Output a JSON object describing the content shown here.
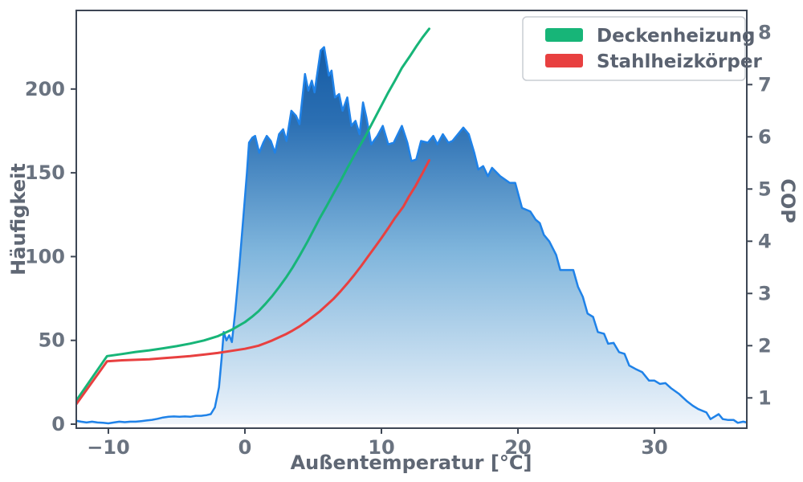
{
  "figure": {
    "xlabel": "Außentemperatur [°C]",
    "ylabel_left": "Häufigkeit",
    "ylabel_right": "COP"
  },
  "colors": {
    "spine": "#3d4654",
    "tick_text": "#6a7380",
    "hist_line": "#1f82e8",
    "grad_top": "#0b529d",
    "grad_mid1": "#2b6fb3",
    "grad_mid2": "#7fb5dc",
    "grad_bottom": "#eef4fb",
    "legend_border": "#c9cdd3"
  },
  "chart_data": {
    "type": "area",
    "title": "",
    "xlabel": "Außentemperatur [°C]",
    "ylabel_left": "Häufigkeit",
    "ylabel_right": "COP",
    "xlim": [
      -12.35,
      36.76
    ],
    "ylim_left": [
      -2.4,
      246.9
    ],
    "ylim_right": [
      0.42,
      8.42
    ],
    "x_ticks": [
      -10,
      0,
      10,
      20,
      30
    ],
    "y_left_ticks": [
      0,
      50,
      100,
      150,
      200
    ],
    "y_right_ticks": [
      1,
      2,
      3,
      4,
      5,
      6,
      7,
      8
    ],
    "grid": false,
    "legend_position": "upper right",
    "histogram": {
      "name": "Häufigkeit",
      "axis": "left",
      "points": [
        [
          -12.35,
          2
        ],
        [
          -12,
          1.5
        ],
        [
          -11.6,
          1
        ],
        [
          -11.2,
          1.5
        ],
        [
          -10.8,
          1
        ],
        [
          -10.4,
          0.8
        ],
        [
          -10,
          0.5
        ],
        [
          -9.6,
          1
        ],
        [
          -9.2,
          1.5
        ],
        [
          -8.8,
          1.2
        ],
        [
          -8.4,
          1.5
        ],
        [
          -8,
          1.5
        ],
        [
          -7.6,
          1.8
        ],
        [
          -7.2,
          2.2
        ],
        [
          -6.8,
          2.6
        ],
        [
          -6.4,
          3.2
        ],
        [
          -6,
          4
        ],
        [
          -5.6,
          4.4
        ],
        [
          -5.2,
          4.6
        ],
        [
          -4.8,
          4.4
        ],
        [
          -4.4,
          4.6
        ],
        [
          -4,
          4.4
        ],
        [
          -3.6,
          5
        ],
        [
          -3.2,
          5
        ],
        [
          -2.8,
          5.4
        ],
        [
          -2.5,
          6
        ],
        [
          -2.2,
          10
        ],
        [
          -1.9,
          22
        ],
        [
          -1.7,
          40
        ],
        [
          -1.55,
          55
        ],
        [
          -1.35,
          50
        ],
        [
          -1.15,
          53
        ],
        [
          -0.95,
          49
        ],
        [
          -0.7,
          68
        ],
        [
          -0.4,
          95
        ],
        [
          -0.1,
          125
        ],
        [
          0.15,
          150
        ],
        [
          0.3,
          168
        ],
        [
          0.55,
          171
        ],
        [
          0.75,
          172
        ],
        [
          1.05,
          162
        ],
        [
          1.35,
          168
        ],
        [
          1.6,
          172
        ],
        [
          1.9,
          169
        ],
        [
          2.2,
          162
        ],
        [
          2.5,
          173
        ],
        [
          2.8,
          176
        ],
        [
          3.05,
          169
        ],
        [
          3.4,
          187
        ],
        [
          3.75,
          184
        ],
        [
          4,
          179
        ],
        [
          4.4,
          209
        ],
        [
          4.65,
          199
        ],
        [
          4.9,
          205
        ],
        [
          5.1,
          198
        ],
        [
          5.55,
          223
        ],
        [
          5.8,
          225
        ],
        [
          6.15,
          208
        ],
        [
          6.35,
          211
        ],
        [
          6.6,
          195
        ],
        [
          6.9,
          197
        ],
        [
          7.15,
          187
        ],
        [
          7.5,
          195
        ],
        [
          7.8,
          178
        ],
        [
          8.1,
          181
        ],
        [
          8.4,
          173
        ],
        [
          8.65,
          192
        ],
        [
          8.9,
          183
        ],
        [
          9.25,
          167
        ],
        [
          9.7,
          172
        ],
        [
          10.1,
          178
        ],
        [
          10.5,
          167
        ],
        [
          10.9,
          168
        ],
        [
          11.5,
          178
        ],
        [
          11.9,
          168
        ],
        [
          12.2,
          157
        ],
        [
          12.55,
          158
        ],
        [
          12.9,
          169
        ],
        [
          13.4,
          168
        ],
        [
          13.8,
          172
        ],
        [
          14.1,
          167
        ],
        [
          14.5,
          173
        ],
        [
          14.9,
          168
        ],
        [
          15.2,
          169
        ],
        [
          16,
          177
        ],
        [
          16.4,
          173
        ],
        [
          16.8,
          162
        ],
        [
          17.1,
          152
        ],
        [
          17.45,
          154
        ],
        [
          17.8,
          148
        ],
        [
          18.1,
          153
        ],
        [
          18.7,
          148
        ],
        [
          19.4,
          144
        ],
        [
          19.8,
          144
        ],
        [
          20.3,
          129
        ],
        [
          20.9,
          127
        ],
        [
          21.3,
          122
        ],
        [
          21.6,
          120
        ],
        [
          21.9,
          113
        ],
        [
          22.3,
          109
        ],
        [
          22.8,
          101
        ],
        [
          23.1,
          92
        ],
        [
          23.7,
          92
        ],
        [
          24.05,
          92
        ],
        [
          24.4,
          82
        ],
        [
          24.75,
          76
        ],
        [
          25.1,
          66
        ],
        [
          25.5,
          64
        ],
        [
          25.85,
          55
        ],
        [
          26.3,
          54
        ],
        [
          26.6,
          48
        ],
        [
          27,
          48.5
        ],
        [
          27.4,
          43
        ],
        [
          27.8,
          42
        ],
        [
          28.15,
          35
        ],
        [
          28.6,
          33
        ],
        [
          29.1,
          31
        ],
        [
          29.6,
          26
        ],
        [
          30,
          26
        ],
        [
          30.4,
          24
        ],
        [
          30.8,
          24.5
        ],
        [
          31.2,
          21.5
        ],
        [
          31.8,
          18
        ],
        [
          32.4,
          13.5
        ],
        [
          32.8,
          11
        ],
        [
          33.2,
          9
        ],
        [
          33.8,
          7
        ],
        [
          34.1,
          3
        ],
        [
          34.5,
          5
        ],
        [
          34.7,
          6
        ],
        [
          35,
          3
        ],
        [
          35.4,
          2.5
        ],
        [
          35.8,
          2.5
        ],
        [
          36.1,
          0.8
        ],
        [
          36.5,
          1.5
        ],
        [
          36.76,
          1
        ]
      ]
    },
    "series": [
      {
        "name": "Deckenheizung",
        "axis": "right",
        "color": "#17b578",
        "points": [
          [
            -12.35,
            0.95
          ],
          [
            -10.1,
            1.8
          ],
          [
            -9,
            1.84
          ],
          [
            -8,
            1.88
          ],
          [
            -7,
            1.91
          ],
          [
            -6,
            1.95
          ],
          [
            -5,
            1.99
          ],
          [
            -4,
            2.04
          ],
          [
            -3,
            2.1
          ],
          [
            -2,
            2.18
          ],
          [
            -1,
            2.3
          ],
          [
            0,
            2.45
          ],
          [
            0.5,
            2.55
          ],
          [
            1,
            2.66
          ],
          [
            1.5,
            2.8
          ],
          [
            2,
            2.95
          ],
          [
            2.5,
            3.12
          ],
          [
            3,
            3.3
          ],
          [
            3.5,
            3.5
          ],
          [
            4,
            3.72
          ],
          [
            4.6,
            4.0
          ],
          [
            5,
            4.2
          ],
          [
            5.5,
            4.45
          ],
          [
            6,
            4.68
          ],
          [
            6.5,
            4.92
          ],
          [
            7,
            5.15
          ],
          [
            7.5,
            5.4
          ],
          [
            8,
            5.64
          ],
          [
            8.8,
            6.0
          ],
          [
            9.7,
            6.45
          ],
          [
            10.5,
            6.85
          ],
          [
            11,
            7.08
          ],
          [
            11.5,
            7.32
          ],
          [
            12.1,
            7.55
          ],
          [
            12.6,
            7.75
          ],
          [
            13,
            7.9
          ],
          [
            13.5,
            8.07
          ]
        ]
      },
      {
        "name": "Stahlheizkörper",
        "axis": "right",
        "color": "#e84040",
        "points": [
          [
            -12.35,
            0.88
          ],
          [
            -10.1,
            1.7
          ],
          [
            -9,
            1.72
          ],
          [
            -8,
            1.73
          ],
          [
            -7,
            1.74
          ],
          [
            -6,
            1.76
          ],
          [
            -5,
            1.78
          ],
          [
            -4,
            1.8
          ],
          [
            -3,
            1.83
          ],
          [
            -2,
            1.86
          ],
          [
            -1,
            1.9
          ],
          [
            0,
            1.94
          ],
          [
            0.5,
            1.97
          ],
          [
            1,
            2.0
          ],
          [
            1.5,
            2.05
          ],
          [
            2,
            2.1
          ],
          [
            2.5,
            2.16
          ],
          [
            3,
            2.22
          ],
          [
            3.5,
            2.29
          ],
          [
            4,
            2.37
          ],
          [
            4.5,
            2.46
          ],
          [
            5,
            2.56
          ],
          [
            5.5,
            2.66
          ],
          [
            6,
            2.78
          ],
          [
            6.5,
            2.9
          ],
          [
            7,
            3.04
          ],
          [
            7.5,
            3.19
          ],
          [
            8,
            3.35
          ],
          [
            8.5,
            3.52
          ],
          [
            9,
            3.7
          ],
          [
            9.5,
            3.88
          ],
          [
            10,
            4.06
          ],
          [
            10.5,
            4.25
          ],
          [
            11,
            4.45
          ],
          [
            11.6,
            4.66
          ],
          [
            12,
            4.85
          ],
          [
            12.5,
            5.06
          ],
          [
            13,
            5.3
          ],
          [
            13.5,
            5.55
          ]
        ]
      }
    ]
  }
}
